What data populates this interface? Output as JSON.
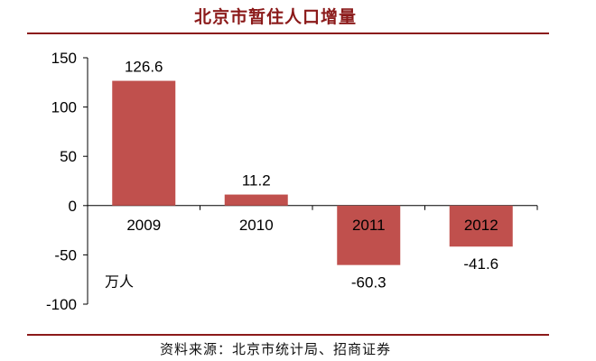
{
  "title": "北京市暂住人口增量",
  "source": "资料来源：北京市统计局、招商证券",
  "colors": {
    "bar": "#c0504d",
    "rule": "#8b1a1a",
    "axis": "#000000"
  },
  "chart_data": {
    "type": "bar",
    "title": "北京市暂住人口增量",
    "categories": [
      "2009",
      "2010",
      "2011",
      "2012"
    ],
    "values": [
      126.6,
      11.2,
      -60.3,
      -41.6
    ],
    "value_labels": [
      "126.6",
      "11.2",
      "-60.3",
      "-41.6"
    ],
    "unit": "万人",
    "ylim": [
      -100,
      150
    ],
    "yticks": [
      -100,
      -50,
      0,
      50,
      100,
      150
    ],
    "ytick_labels": [
      "-100",
      "-50",
      "0",
      "50",
      "100",
      "150"
    ],
    "grid": false,
    "legend": "none"
  }
}
